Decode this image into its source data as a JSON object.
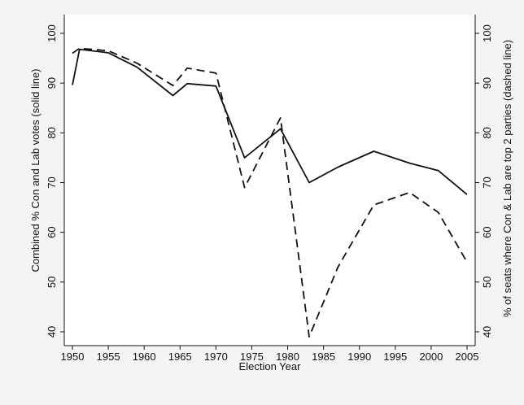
{
  "chart_data": {
    "type": "line",
    "xlabel": "Election Year",
    "ylabel_left": "Combined % Con and Lab votes (solid line)",
    "ylabel_right": "% of seats where Con & Lab are top 2 parties (dashed line)",
    "xlim": [
      1950,
      2005
    ],
    "ylim_left": [
      40,
      100
    ],
    "ylim_right": [
      40,
      100
    ],
    "x_ticks": [
      1950,
      1955,
      1960,
      1965,
      1970,
      1975,
      1980,
      1985,
      1990,
      1995,
      2000,
      2005
    ],
    "y_ticks": [
      40,
      50,
      60,
      70,
      80,
      90,
      100
    ],
    "grid": false,
    "legend": "none",
    "series": [
      {
        "style": "solid",
        "axis": "left",
        "x": [
          1950,
          1951,
          1955,
          1959,
          1964,
          1966,
          1970,
          1974,
          1979,
          1983,
          1987,
          1992,
          1997,
          2001,
          2005
        ],
        "y": [
          89.6,
          96.8,
          96.1,
          93.2,
          87.5,
          89.9,
          89.4,
          75.0,
          80.8,
          70.0,
          73.1,
          76.3,
          73.9,
          72.4,
          67.6
        ]
      },
      {
        "style": "dashed",
        "axis": "right",
        "x": [
          1950,
          1951,
          1955,
          1959,
          1964,
          1966,
          1970,
          1974,
          1979,
          1983,
          1987,
          1992,
          1997,
          2001,
          2005
        ],
        "y": [
          96.0,
          97.0,
          96.5,
          94.0,
          89.5,
          93.0,
          92.0,
          69.0,
          83.0,
          39.0,
          53.0,
          65.5,
          68.0,
          64.0,
          54.0
        ]
      }
    ]
  },
  "colors": {
    "frame_bg": "#f4f4f4",
    "plot_bg": "#ffffff",
    "line": "#111111"
  }
}
